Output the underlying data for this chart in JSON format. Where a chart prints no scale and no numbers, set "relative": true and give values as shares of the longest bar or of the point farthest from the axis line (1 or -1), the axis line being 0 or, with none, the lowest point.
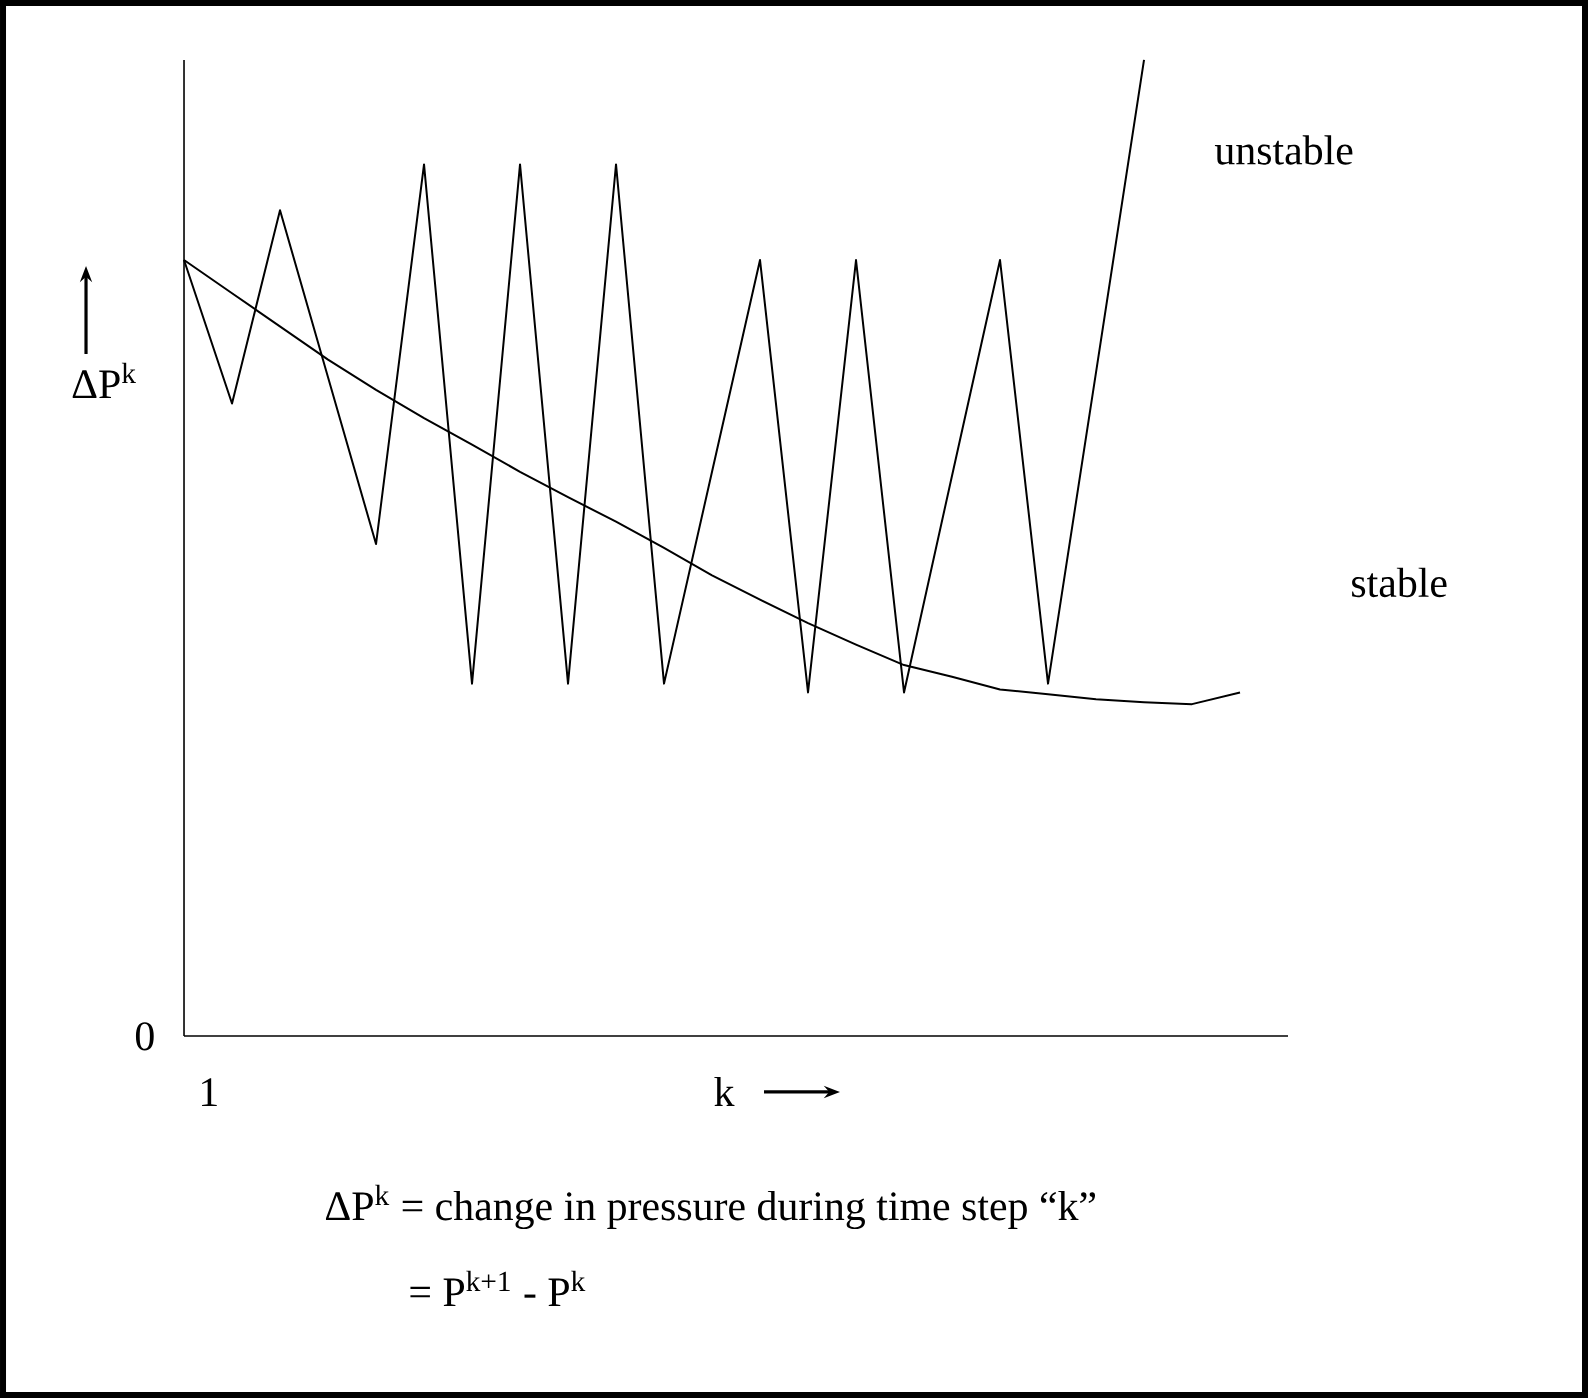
{
  "chart_data": {
    "type": "line",
    "relative": true,
    "xlabel": "k",
    "ylabel": "ΔP$^{k}$",
    "marker": "none",
    "line_style": "solid",
    "categories": [
      null,
      null,
      null,
      null,
      null,
      null,
      null,
      null,
      null,
      null,
      null,
      null,
      null,
      null,
      null,
      null,
      null,
      null,
      null,
      null,
      null,
      null,
      null,
      null
    ],
    "series": [
      {
        "name": "unstable",
        "color": "#000000",
        "values": [
          0.795,
          0.648,
          0.846,
          0.675,
          0.504,
          0.893,
          0.361,
          0.893,
          0.361,
          0.893,
          0.361,
          0.578,
          0.795,
          0.352,
          0.795,
          0.352,
          0.574,
          0.795,
          0.361,
          0.68,
          1.0,
          null,
          null,
          null
        ]
      },
      {
        "name": "stable",
        "color": "#000000",
        "type": "line",
        "values": [
          0.795,
          0.761,
          0.727,
          0.693,
          0.662,
          0.633,
          0.606,
          0.578,
          0.552,
          0.527,
          0.5,
          0.472,
          0.447,
          0.423,
          0.401,
          0.38,
          0.368,
          0.355,
          0.35,
          0.345,
          0.342,
          0.34,
          0.352,
          null
        ]
      }
    ],
    "annotations": [
      "0",
      "1",
      "ΔP$^{k}$ = change in pressure during time step “k”",
      "= P$^{k+1}$ - P$^{k}$"
    ]
  }
}
